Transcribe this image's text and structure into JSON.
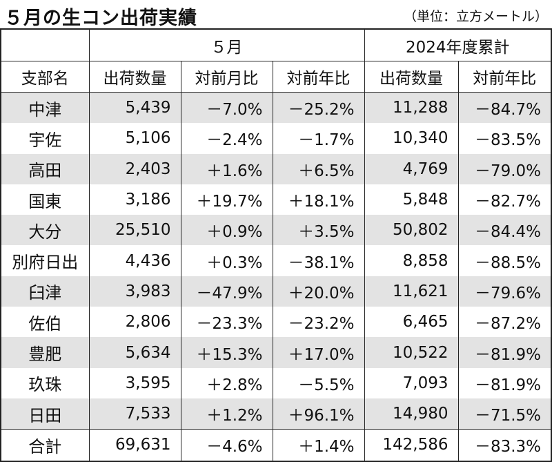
{
  "title": "５月の生コン出荷実績",
  "unit": "（単位：立方メートル）",
  "header": {
    "group_month": "５月",
    "group_cumulative": "2024年度累計",
    "col_branch": "支部名",
    "col_volume": "出荷数量",
    "col_mom": "対前月比",
    "col_yoy": "対前年比",
    "col_cum_volume": "出荷数量",
    "col_cum_yoy": "対前年比"
  },
  "rows": [
    {
      "name": "中津",
      "volume": "5,439",
      "mom": "－7.0%",
      "yoy": "－25.2%",
      "cum_volume": "11,288",
      "cum_yoy": "－84.7%"
    },
    {
      "name": "宇佐",
      "volume": "5,106",
      "mom": "－2.4%",
      "yoy": "－1.7%",
      "cum_volume": "10,340",
      "cum_yoy": "－83.5%"
    },
    {
      "name": "高田",
      "volume": "2,403",
      "mom": "＋1.6%",
      "yoy": "＋6.5%",
      "cum_volume": "4,769",
      "cum_yoy": "－79.0%"
    },
    {
      "name": "国東",
      "volume": "3,186",
      "mom": "＋19.7%",
      "yoy": "＋18.1%",
      "cum_volume": "5,848",
      "cum_yoy": "－82.7%"
    },
    {
      "name": "大分",
      "volume": "25,510",
      "mom": "＋0.9%",
      "yoy": "＋3.5%",
      "cum_volume": "50,802",
      "cum_yoy": "－84.4%"
    },
    {
      "name": "別府日出",
      "volume": "4,436",
      "mom": "＋0.3%",
      "yoy": "－38.1%",
      "cum_volume": "8,858",
      "cum_yoy": "－88.5%"
    },
    {
      "name": "臼津",
      "volume": "3,983",
      "mom": "－47.9%",
      "yoy": "＋20.0%",
      "cum_volume": "11,621",
      "cum_yoy": "－79.6%"
    },
    {
      "name": "佐伯",
      "volume": "2,806",
      "mom": "－23.3%",
      "yoy": "－23.2%",
      "cum_volume": "6,465",
      "cum_yoy": "－87.2%"
    },
    {
      "name": "豊肥",
      "volume": "5,634",
      "mom": "＋15.3%",
      "yoy": "＋17.0%",
      "cum_volume": "10,522",
      "cum_yoy": "－81.9%"
    },
    {
      "name": "玖珠",
      "volume": "3,595",
      "mom": "＋2.8%",
      "yoy": "－5.5%",
      "cum_volume": "7,093",
      "cum_yoy": "－81.9%"
    },
    {
      "name": "日田",
      "volume": "7,533",
      "mom": "＋1.2%",
      "yoy": "＋96.1%",
      "cum_volume": "14,980",
      "cum_yoy": "－71.5%"
    }
  ],
  "total": {
    "name": "合計",
    "volume": "69,631",
    "mom": "－4.6%",
    "yoy": "＋1.4%",
    "cum_volume": "142,586",
    "cum_yoy": "－83.3%"
  },
  "colors": {
    "shade": "#e3e3e3",
    "border": "#222222"
  }
}
